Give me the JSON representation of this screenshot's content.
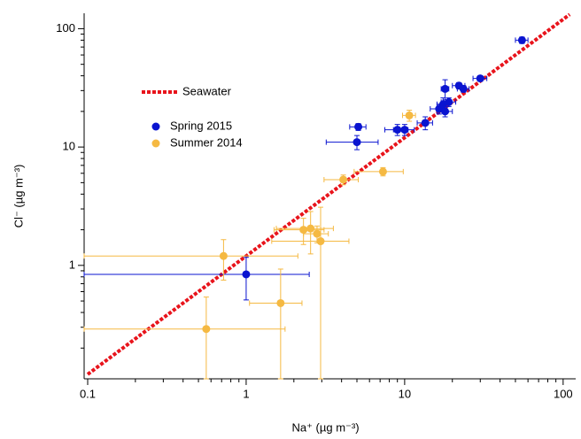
{
  "chart_data": {
    "type": "scatter",
    "xlabel": "Na⁺ (µg m⁻³)",
    "ylabel": "Cl⁻ (µg m⁻³)",
    "log_x": true,
    "log_y": true,
    "xlim": [
      0.095,
      120
    ],
    "ylim": [
      0.11,
      135
    ],
    "xticks": [
      0.1,
      1,
      10,
      100
    ],
    "yticks": [
      1,
      10,
      100
    ],
    "legend": "upper left",
    "series": [
      {
        "name": "Seawater",
        "color": "#e8141c",
        "style": "dotted-line",
        "x": [
          0.1,
          110
        ],
        "values": [
          0.12,
          132
        ]
      },
      {
        "name": "Spring 2015",
        "color": "#0a14d0",
        "style": "marker",
        "x": [
          1.0,
          5.0,
          5.1,
          9,
          10,
          13.5,
          16.5,
          17.5,
          18,
          18,
          19,
          22,
          23.5,
          30,
          55
        ],
        "values": [
          0.84,
          11,
          14.8,
          14,
          14,
          16,
          21,
          23,
          20,
          31,
          24,
          33,
          31,
          38,
          80
        ],
        "xerr": [
          1.5,
          1.8,
          0.6,
          1.5,
          1.5,
          1.5,
          2,
          1.5,
          2,
          1,
          2,
          2,
          2,
          3,
          5
        ],
        "yerr": [
          0.33,
          1.5,
          1,
          1.5,
          1.5,
          2,
          2,
          3,
          2,
          6,
          2,
          2,
          2,
          2,
          5
        ]
      },
      {
        "name": "Summer 2014",
        "color": "#f5b942",
        "style": "marker",
        "x": [
          0.56,
          0.72,
          1.65,
          2.3,
          2.55,
          2.8,
          2.95,
          4.1,
          7.3,
          10.7
        ],
        "values": [
          0.29,
          1.2,
          0.48,
          2.0,
          2.05,
          1.85,
          1.6,
          5.3,
          6.2,
          18.5
        ],
        "xerr": [
          1.2,
          1.4,
          0.6,
          0.8,
          1,
          0.5,
          1.5,
          1,
          2.5,
          1
        ],
        "yerr": [
          0.25,
          0.45,
          0.45,
          0.5,
          0.8,
          0.3,
          1.5,
          0.5,
          0.5,
          2
        ]
      }
    ]
  }
}
